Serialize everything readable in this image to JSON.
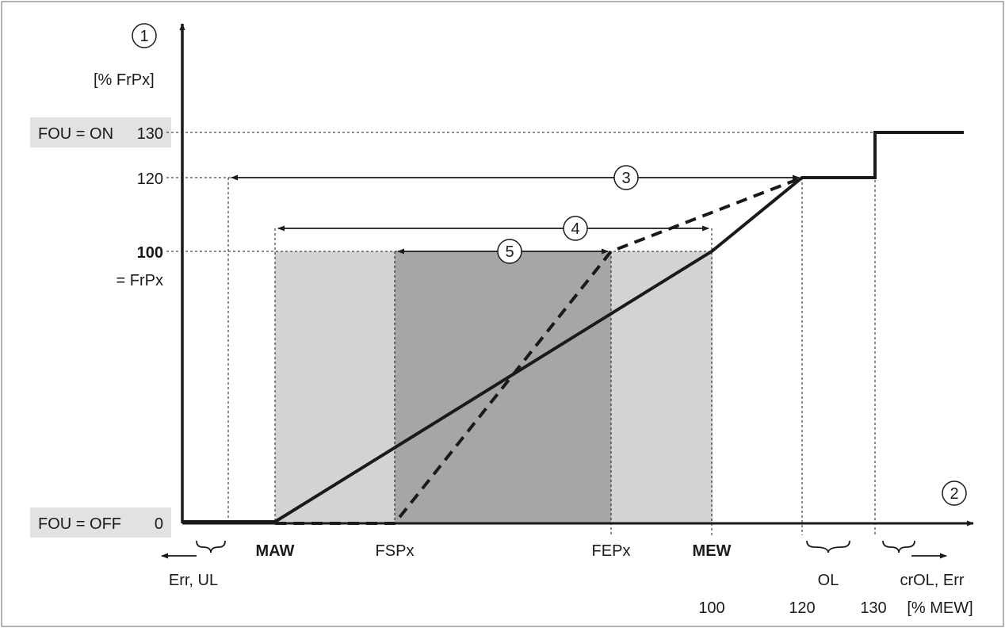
{
  "y_axis": {
    "marker": "1",
    "unit": "[% FrPx]",
    "ticks": {
      "t130": "130",
      "t120": "120",
      "t100": "100",
      "t100_sub": "= FrPx",
      "t0": "0"
    },
    "tags": {
      "on": "FOU = ON",
      "off": "FOU = OFF"
    }
  },
  "x_axis": {
    "marker": "2",
    "unit": "[% MEW]",
    "labels": {
      "maw": "MAW",
      "fspx": "FSPx",
      "fepx": "FEPx",
      "mew": "MEW",
      "v100": "100",
      "v120": "120",
      "v130": "130"
    },
    "regions": {
      "under": "Err, UL",
      "over": "OL",
      "crit": "crOL, Err"
    }
  },
  "ranges": {
    "r3": "3",
    "r4": "4",
    "r5": "5"
  },
  "colors": {
    "light_band": "#d3d3d3",
    "dark_band": "#a6a6a6",
    "tag_bg": "#e2e2e2",
    "line": "#1a1a1a"
  }
}
